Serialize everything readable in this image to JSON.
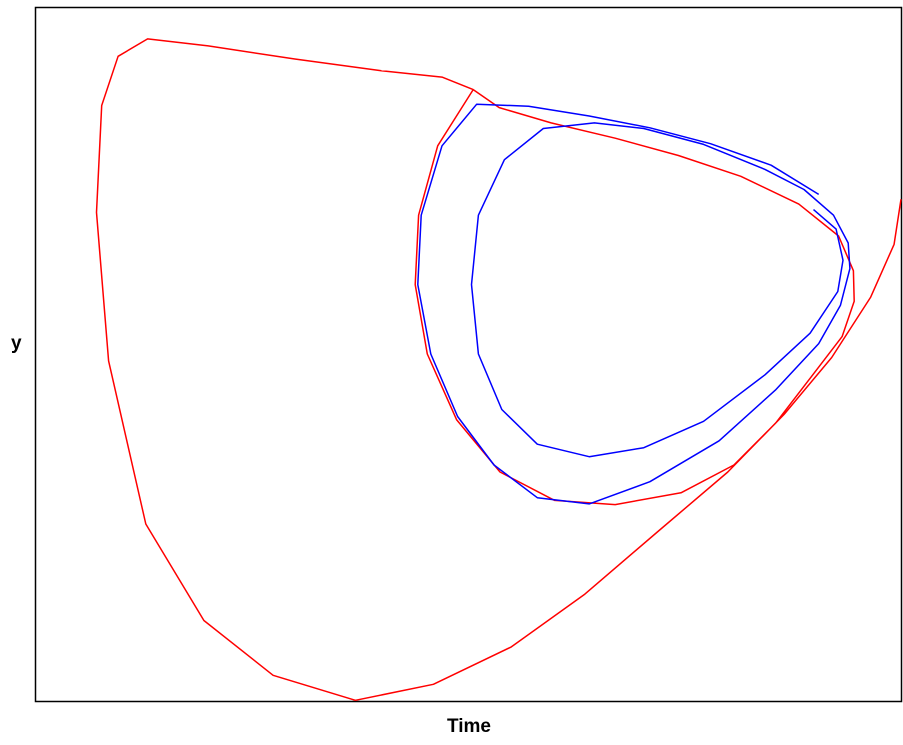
{
  "chart_data": {
    "type": "line",
    "title": "",
    "xlabel": "Time",
    "ylabel": "y",
    "xlim": [
      0,
      100
    ],
    "ylim": [
      0,
      100
    ],
    "axes_ticks": false,
    "grid": false,
    "legend": "none",
    "series": [
      {
        "color": "#ff0000",
        "points": [
          [
            100,
            72.3
          ],
          [
            99.2,
            65.8
          ],
          [
            96.5,
            58.2
          ],
          [
            92.0,
            49.5
          ],
          [
            86.5,
            41.3
          ],
          [
            80.0,
            33.0
          ],
          [
            72.0,
            24.5
          ],
          [
            63.5,
            15.4
          ],
          [
            55.0,
            7.8
          ],
          [
            46.0,
            2.4
          ],
          [
            37.0,
            0.1
          ],
          [
            27.5,
            3.7
          ],
          [
            19.5,
            11.6
          ],
          [
            12.8,
            25.5
          ],
          [
            8.5,
            49.0
          ],
          [
            7.1,
            70.4
          ],
          [
            7.7,
            85.8
          ],
          [
            9.6,
            92.9
          ],
          [
            13.0,
            95.4
          ],
          [
            20.0,
            94.4
          ],
          [
            30.0,
            92.5
          ],
          [
            40.0,
            90.8
          ],
          [
            47.0,
            89.9
          ],
          [
            50.6,
            88.1
          ],
          [
            53.6,
            85.5
          ],
          [
            59.6,
            83.3
          ],
          [
            67.0,
            81.1
          ],
          [
            74.3,
            78.6
          ],
          [
            81.5,
            75.6
          ],
          [
            88.2,
            71.6
          ],
          [
            92.8,
            67.0
          ],
          [
            94.5,
            62.0
          ],
          [
            94.6,
            57.6
          ],
          [
            93.2,
            52.5
          ],
          [
            89.5,
            46.5
          ],
          [
            85.5,
            40.0
          ],
          [
            80.7,
            34.0
          ],
          [
            74.6,
            30.0
          ],
          [
            67.0,
            28.3
          ],
          [
            60.0,
            28.9
          ],
          [
            53.7,
            33.0
          ],
          [
            48.7,
            40.5
          ],
          [
            45.3,
            50.0
          ],
          [
            43.9,
            60.0
          ],
          [
            44.3,
            70.0
          ],
          [
            46.5,
            80.0
          ],
          [
            50.6,
            88.1
          ]
        ]
      },
      {
        "color": "#0000ff",
        "points": [
          [
            89.9,
            70.8
          ],
          [
            92.5,
            68.0
          ],
          [
            93.3,
            63.5
          ],
          [
            92.7,
            59.0
          ],
          [
            89.5,
            53.0
          ],
          [
            84.3,
            47.0
          ],
          [
            77.2,
            40.3
          ],
          [
            70.3,
            36.5
          ],
          [
            64.0,
            35.2
          ],
          [
            58.0,
            37.0
          ],
          [
            53.9,
            42.0
          ],
          [
            51.2,
            50.0
          ],
          [
            50.4,
            60.0
          ],
          [
            51.2,
            70.0
          ],
          [
            54.2,
            78.0
          ],
          [
            58.7,
            82.5
          ],
          [
            64.6,
            83.3
          ],
          [
            70.3,
            82.5
          ],
          [
            77.2,
            80.2
          ],
          [
            84.3,
            76.6
          ],
          [
            88.8,
            73.7
          ],
          [
            92.2,
            70.0
          ],
          [
            93.9,
            66.0
          ],
          [
            94.1,
            62.3
          ],
          [
            93.0,
            57.0
          ],
          [
            90.5,
            51.5
          ],
          [
            85.5,
            44.8
          ],
          [
            79.0,
            37.5
          ],
          [
            71.0,
            31.6
          ],
          [
            64.0,
            28.4
          ],
          [
            58.0,
            29.3
          ],
          [
            53.0,
            34.0
          ],
          [
            48.8,
            41.0
          ],
          [
            45.7,
            50.0
          ],
          [
            44.2,
            60.0
          ],
          [
            44.6,
            70.0
          ],
          [
            47.0,
            80.0
          ],
          [
            51.0,
            86.0
          ],
          [
            57.0,
            85.7
          ],
          [
            64.0,
            84.3
          ],
          [
            71.0,
            82.6
          ],
          [
            78.0,
            80.3
          ],
          [
            85.0,
            77.2
          ],
          [
            90.5,
            73.0
          ]
        ]
      }
    ]
  }
}
